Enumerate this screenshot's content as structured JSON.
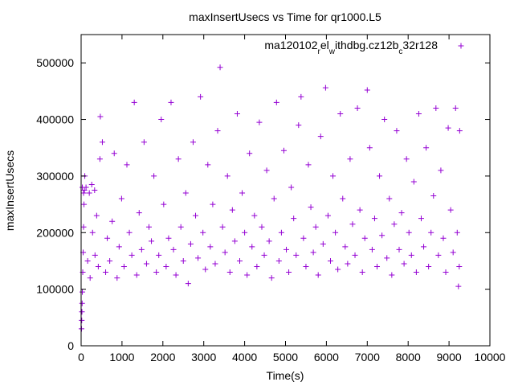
{
  "chart_data": {
    "type": "scatter",
    "title": "maxInsertUsecs vs Time for qr1000.L5",
    "xlabel": "Time(s)",
    "ylabel": "maxInsertUsecs",
    "xlim": [
      0,
      10000
    ],
    "ylim": [
      0,
      550000
    ],
    "xticks": [
      "0",
      "1000",
      "2000",
      "3000",
      "4000",
      "5000",
      "6000",
      "7000",
      "8000",
      "9000",
      "10000"
    ],
    "yticks": [
      "0",
      "100000",
      "200000",
      "300000",
      "400000",
      "500000"
    ],
    "grid": false,
    "legend_position": "top-right",
    "marker": "+",
    "color": "#9400d3",
    "series": [
      {
        "name_parts": [
          {
            "text": "ma120102",
            "sub": false
          },
          {
            "text": "r",
            "sub": true
          },
          {
            "text": "el",
            "sub": false
          },
          {
            "text": "w",
            "sub": true
          },
          {
            "text": "ithdbg.cz12b",
            "sub": false
          },
          {
            "text": "c",
            "sub": true
          },
          {
            "text": "32r128",
            "sub": false
          }
        ],
        "points": [
          [
            10,
            30000
          ],
          [
            15,
            45000
          ],
          [
            20,
            60000
          ],
          [
            25,
            75000
          ],
          [
            30,
            95000
          ],
          [
            40,
            130000
          ],
          [
            50,
            165000
          ],
          [
            60,
            210000
          ],
          [
            70,
            250000
          ],
          [
            80,
            275000
          ],
          [
            90,
            300000
          ],
          [
            30,
            280000
          ],
          [
            60,
            270000
          ],
          [
            120,
            280000
          ],
          [
            200,
            270000
          ],
          [
            260,
            285000
          ],
          [
            330,
            275000
          ],
          [
            160,
            150000
          ],
          [
            220,
            120000
          ],
          [
            280,
            200000
          ],
          [
            340,
            160000
          ],
          [
            380,
            230000
          ],
          [
            420,
            140000
          ],
          [
            460,
            330000
          ],
          [
            470,
            405000
          ],
          [
            520,
            360000
          ],
          [
            600,
            130000
          ],
          [
            640,
            190000
          ],
          [
            700,
            150000
          ],
          [
            760,
            220000
          ],
          [
            810,
            340000
          ],
          [
            880,
            120000
          ],
          [
            930,
            175000
          ],
          [
            990,
            260000
          ],
          [
            1050,
            140000
          ],
          [
            1120,
            320000
          ],
          [
            1180,
            200000
          ],
          [
            1240,
            160000
          ],
          [
            1300,
            430000
          ],
          [
            1360,
            125000
          ],
          [
            1420,
            235000
          ],
          [
            1480,
            170000
          ],
          [
            1540,
            360000
          ],
          [
            1600,
            145000
          ],
          [
            1660,
            210000
          ],
          [
            1720,
            185000
          ],
          [
            1780,
            300000
          ],
          [
            1840,
            130000
          ],
          [
            1900,
            160000
          ],
          [
            1960,
            400000
          ],
          [
            2020,
            250000
          ],
          [
            2080,
            140000
          ],
          [
            2140,
            190000
          ],
          [
            2200,
            430000
          ],
          [
            2260,
            170000
          ],
          [
            2320,
            125000
          ],
          [
            2380,
            330000
          ],
          [
            2440,
            210000
          ],
          [
            2500,
            150000
          ],
          [
            2560,
            270000
          ],
          [
            2620,
            110000
          ],
          [
            2680,
            180000
          ],
          [
            2740,
            360000
          ],
          [
            2800,
            230000
          ],
          [
            2860,
            155000
          ],
          [
            2920,
            440000
          ],
          [
            2980,
            200000
          ],
          [
            3040,
            135000
          ],
          [
            3100,
            320000
          ],
          [
            3160,
            175000
          ],
          [
            3220,
            250000
          ],
          [
            3280,
            145000
          ],
          [
            3340,
            380000
          ],
          [
            3400,
            492000
          ],
          [
            3460,
            210000
          ],
          [
            3520,
            165000
          ],
          [
            3580,
            300000
          ],
          [
            3640,
            130000
          ],
          [
            3700,
            240000
          ],
          [
            3760,
            185000
          ],
          [
            3820,
            410000
          ],
          [
            3880,
            150000
          ],
          [
            3940,
            270000
          ],
          [
            4000,
            200000
          ],
          [
            4060,
            125000
          ],
          [
            4120,
            340000
          ],
          [
            4180,
            175000
          ],
          [
            4240,
            230000
          ],
          [
            4300,
            140000
          ],
          [
            4360,
            395000
          ],
          [
            4420,
            210000
          ],
          [
            4480,
            160000
          ],
          [
            4540,
            310000
          ],
          [
            4600,
            185000
          ],
          [
            4660,
            120000
          ],
          [
            4720,
            260000
          ],
          [
            4780,
            430000
          ],
          [
            4840,
            150000
          ],
          [
            4900,
            200000
          ],
          [
            4960,
            345000
          ],
          [
            5020,
            170000
          ],
          [
            5080,
            130000
          ],
          [
            5140,
            280000
          ],
          [
            5200,
            225000
          ],
          [
            5260,
            160000
          ],
          [
            5320,
            390000
          ],
          [
            5380,
            440000
          ],
          [
            5440,
            190000
          ],
          [
            5500,
            140000
          ],
          [
            5560,
            320000
          ],
          [
            5620,
            245000
          ],
          [
            5680,
            165000
          ],
          [
            5740,
            210000
          ],
          [
            5800,
            125000
          ],
          [
            5860,
            370000
          ],
          [
            5920,
            180000
          ],
          [
            5980,
            456000
          ],
          [
            6040,
            230000
          ],
          [
            6100,
            150000
          ],
          [
            6160,
            300000
          ],
          [
            6220,
            200000
          ],
          [
            6280,
            135000
          ],
          [
            6340,
            410000
          ],
          [
            6400,
            260000
          ],
          [
            6460,
            175000
          ],
          [
            6520,
            145000
          ],
          [
            6580,
            330000
          ],
          [
            6640,
            215000
          ],
          [
            6700,
            160000
          ],
          [
            6760,
            420000
          ],
          [
            6820,
            240000
          ],
          [
            6880,
            130000
          ],
          [
            6940,
            190000
          ],
          [
            7000,
            452000
          ],
          [
            7060,
            350000
          ],
          [
            7120,
            170000
          ],
          [
            7180,
            225000
          ],
          [
            7240,
            140000
          ],
          [
            7300,
            300000
          ],
          [
            7360,
            195000
          ],
          [
            7420,
            400000
          ],
          [
            7480,
            155000
          ],
          [
            7540,
            260000
          ],
          [
            7600,
            125000
          ],
          [
            7660,
            215000
          ],
          [
            7720,
            380000
          ],
          [
            7780,
            170000
          ],
          [
            7840,
            235000
          ],
          [
            7900,
            145000
          ],
          [
            7960,
            330000
          ],
          [
            8020,
            200000
          ],
          [
            8080,
            160000
          ],
          [
            8140,
            290000
          ],
          [
            8200,
            130000
          ],
          [
            8260,
            410000
          ],
          [
            8320,
            225000
          ],
          [
            8380,
            175000
          ],
          [
            8440,
            350000
          ],
          [
            8500,
            140000
          ],
          [
            8560,
            200000
          ],
          [
            8620,
            265000
          ],
          [
            8680,
            420000
          ],
          [
            8740,
            160000
          ],
          [
            8800,
            310000
          ],
          [
            8860,
            190000
          ],
          [
            8920,
            130000
          ],
          [
            8980,
            385000
          ],
          [
            9040,
            240000
          ],
          [
            9100,
            165000
          ],
          [
            9160,
            420000
          ],
          [
            9200,
            200000
          ],
          [
            9230,
            105000
          ],
          [
            9250,
            140000
          ],
          [
            9260,
            380000
          ]
        ]
      }
    ]
  }
}
